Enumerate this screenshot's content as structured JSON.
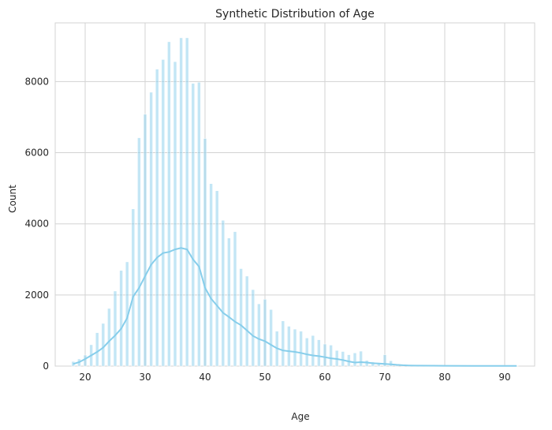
{
  "chart_data": {
    "type": "bar",
    "title": "Synthetic Distribution of Age",
    "xlabel": "Age",
    "ylabel": "Count",
    "xlim": [
      15,
      95
    ],
    "ylim": [
      0,
      9650
    ],
    "xticks": [
      20,
      30,
      40,
      50,
      60,
      70,
      80,
      90
    ],
    "yticks": [
      0,
      2000,
      4000,
      6000,
      8000
    ],
    "grid": true,
    "bar_color": "#87CEEB",
    "kde_color": "#87CEEB",
    "background": "#ffffff",
    "grid_color": "#d3d3d3",
    "histogram": {
      "ages": [
        18,
        19,
        20,
        21,
        22,
        23,
        24,
        25,
        26,
        27,
        28,
        29,
        30,
        31,
        32,
        33,
        34,
        35,
        36,
        37,
        38,
        39,
        40,
        41,
        42,
        43,
        44,
        45,
        46,
        47,
        48,
        49,
        50,
        51,
        52,
        53,
        54,
        55,
        56,
        57,
        58,
        59,
        60,
        61,
        62,
        63,
        64,
        65,
        66,
        67,
        68,
        69,
        70,
        71,
        72,
        73,
        74,
        75,
        76,
        77,
        78,
        79,
        80,
        81,
        82,
        83,
        84,
        85,
        86,
        87,
        88,
        89,
        90,
        91,
        92
      ],
      "counts": [
        130,
        200,
        310,
        600,
        940,
        1200,
        1620,
        2110,
        2690,
        2930,
        4420,
        6420,
        7080,
        7700,
        8350,
        8620,
        9120,
        8560,
        9230,
        9230,
        7950,
        7980,
        6400,
        5130,
        4930,
        4100,
        3600,
        3780,
        2740,
        2530,
        2150,
        1750,
        1880,
        1590,
        980,
        1270,
        1120,
        1040,
        980,
        790,
        860,
        740,
        620,
        590,
        440,
        410,
        320,
        370,
        420,
        160,
        120,
        60,
        320,
        150,
        60,
        40,
        30,
        25,
        20,
        18,
        15,
        12,
        10,
        10,
        8,
        8,
        6,
        6,
        5,
        5,
        4,
        4,
        3,
        3,
        3
      ]
    },
    "kde": {
      "x": [
        18,
        19,
        20,
        21,
        22,
        23,
        24,
        25,
        26,
        27,
        28,
        29,
        30,
        31,
        32,
        33,
        34,
        35,
        36,
        37,
        38,
        39,
        40,
        41,
        42,
        43,
        44,
        45,
        46,
        47,
        48,
        49,
        50,
        51,
        52,
        53,
        54,
        55,
        56,
        57,
        58,
        59,
        60,
        61,
        62,
        63,
        64,
        65,
        66,
        67,
        68,
        69,
        70,
        71,
        72,
        73,
        74,
        75,
        78,
        80,
        85,
        90,
        92
      ],
      "y": [
        60,
        110,
        200,
        300,
        400,
        520,
        700,
        860,
        1050,
        1350,
        1950,
        2200,
        2530,
        2850,
        3050,
        3180,
        3210,
        3280,
        3320,
        3280,
        3000,
        2800,
        2200,
        1900,
        1700,
        1500,
        1380,
        1250,
        1150,
        1000,
        850,
        760,
        700,
        600,
        500,
        440,
        420,
        400,
        370,
        330,
        300,
        280,
        250,
        220,
        200,
        170,
        130,
        100,
        110,
        100,
        80,
        70,
        60,
        50,
        35,
        25,
        18,
        14,
        10,
        8,
        6,
        5,
        5
      ]
    }
  }
}
